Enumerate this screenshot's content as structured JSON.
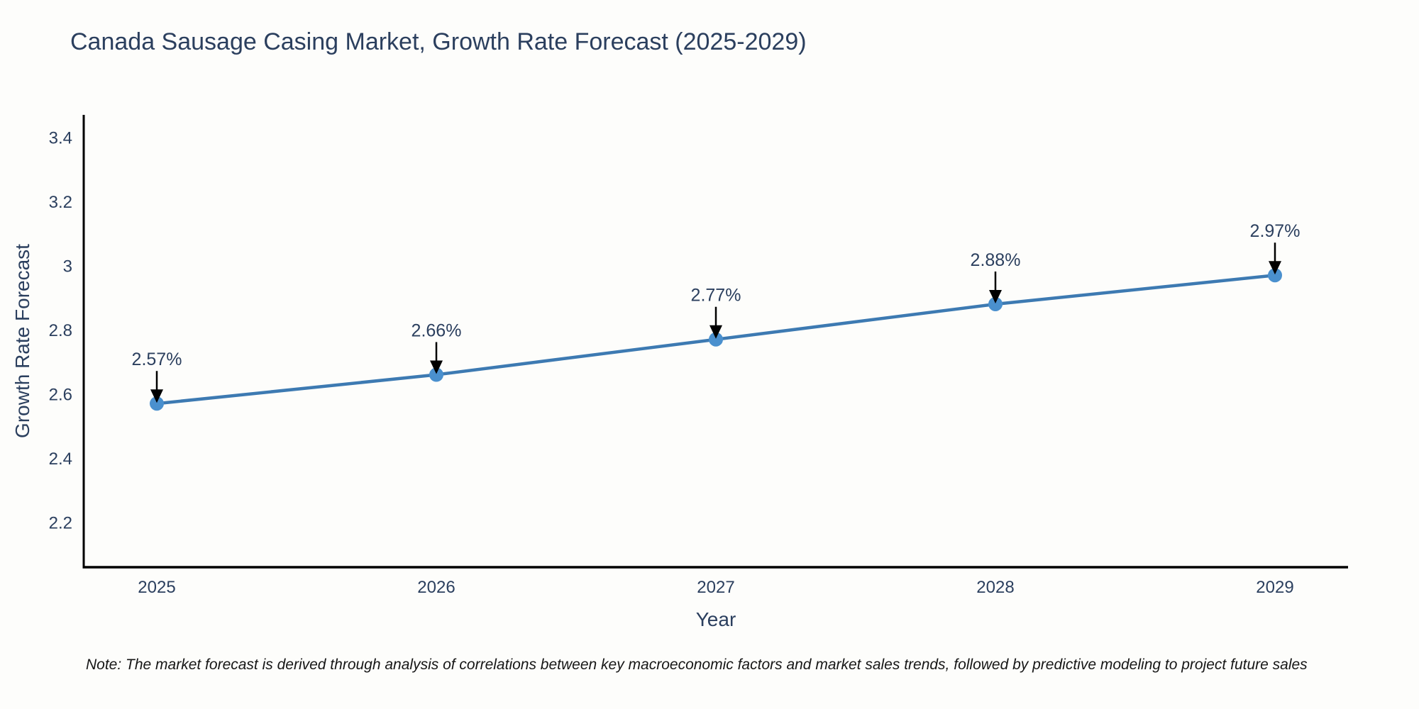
{
  "chart_data": {
    "type": "line",
    "title": "Canada Sausage Casing Market, Growth Rate Forecast (2025-2029)",
    "xlabel": "Year",
    "ylabel": "Growth Rate Forecast",
    "x": [
      2025,
      2026,
      2027,
      2028,
      2029
    ],
    "series": [
      {
        "name": "Growth Rate Forecast",
        "values": [
          2.57,
          2.66,
          2.77,
          2.88,
          2.97
        ]
      }
    ],
    "point_labels": [
      "2.57%",
      "2.66%",
      "2.77%",
      "2.88%",
      "2.97%"
    ],
    "unit": "%",
    "yticks": [
      3.4,
      3.2,
      3,
      2.8,
      2.6,
      2.4,
      2.2
    ],
    "ytick_labels": [
      "3.4",
      "3.2",
      "3",
      "2.8",
      "2.6",
      "2.4",
      "2.2"
    ],
    "ylim": [
      2.06,
      3.47
    ],
    "grid": false,
    "legend": "none",
    "annotations": "value labels with downward black arrows above each point",
    "colors": {
      "line": "#3d7ab2",
      "marker": "#4a90ce",
      "axis": "#000000",
      "text": "#2b3f5e",
      "annotation_arrow": "#000000"
    }
  },
  "note": "Note: The market forecast is derived through analysis of correlations between key macroeconomic factors and market sales trends, followed by predictive modeling to project future sales"
}
